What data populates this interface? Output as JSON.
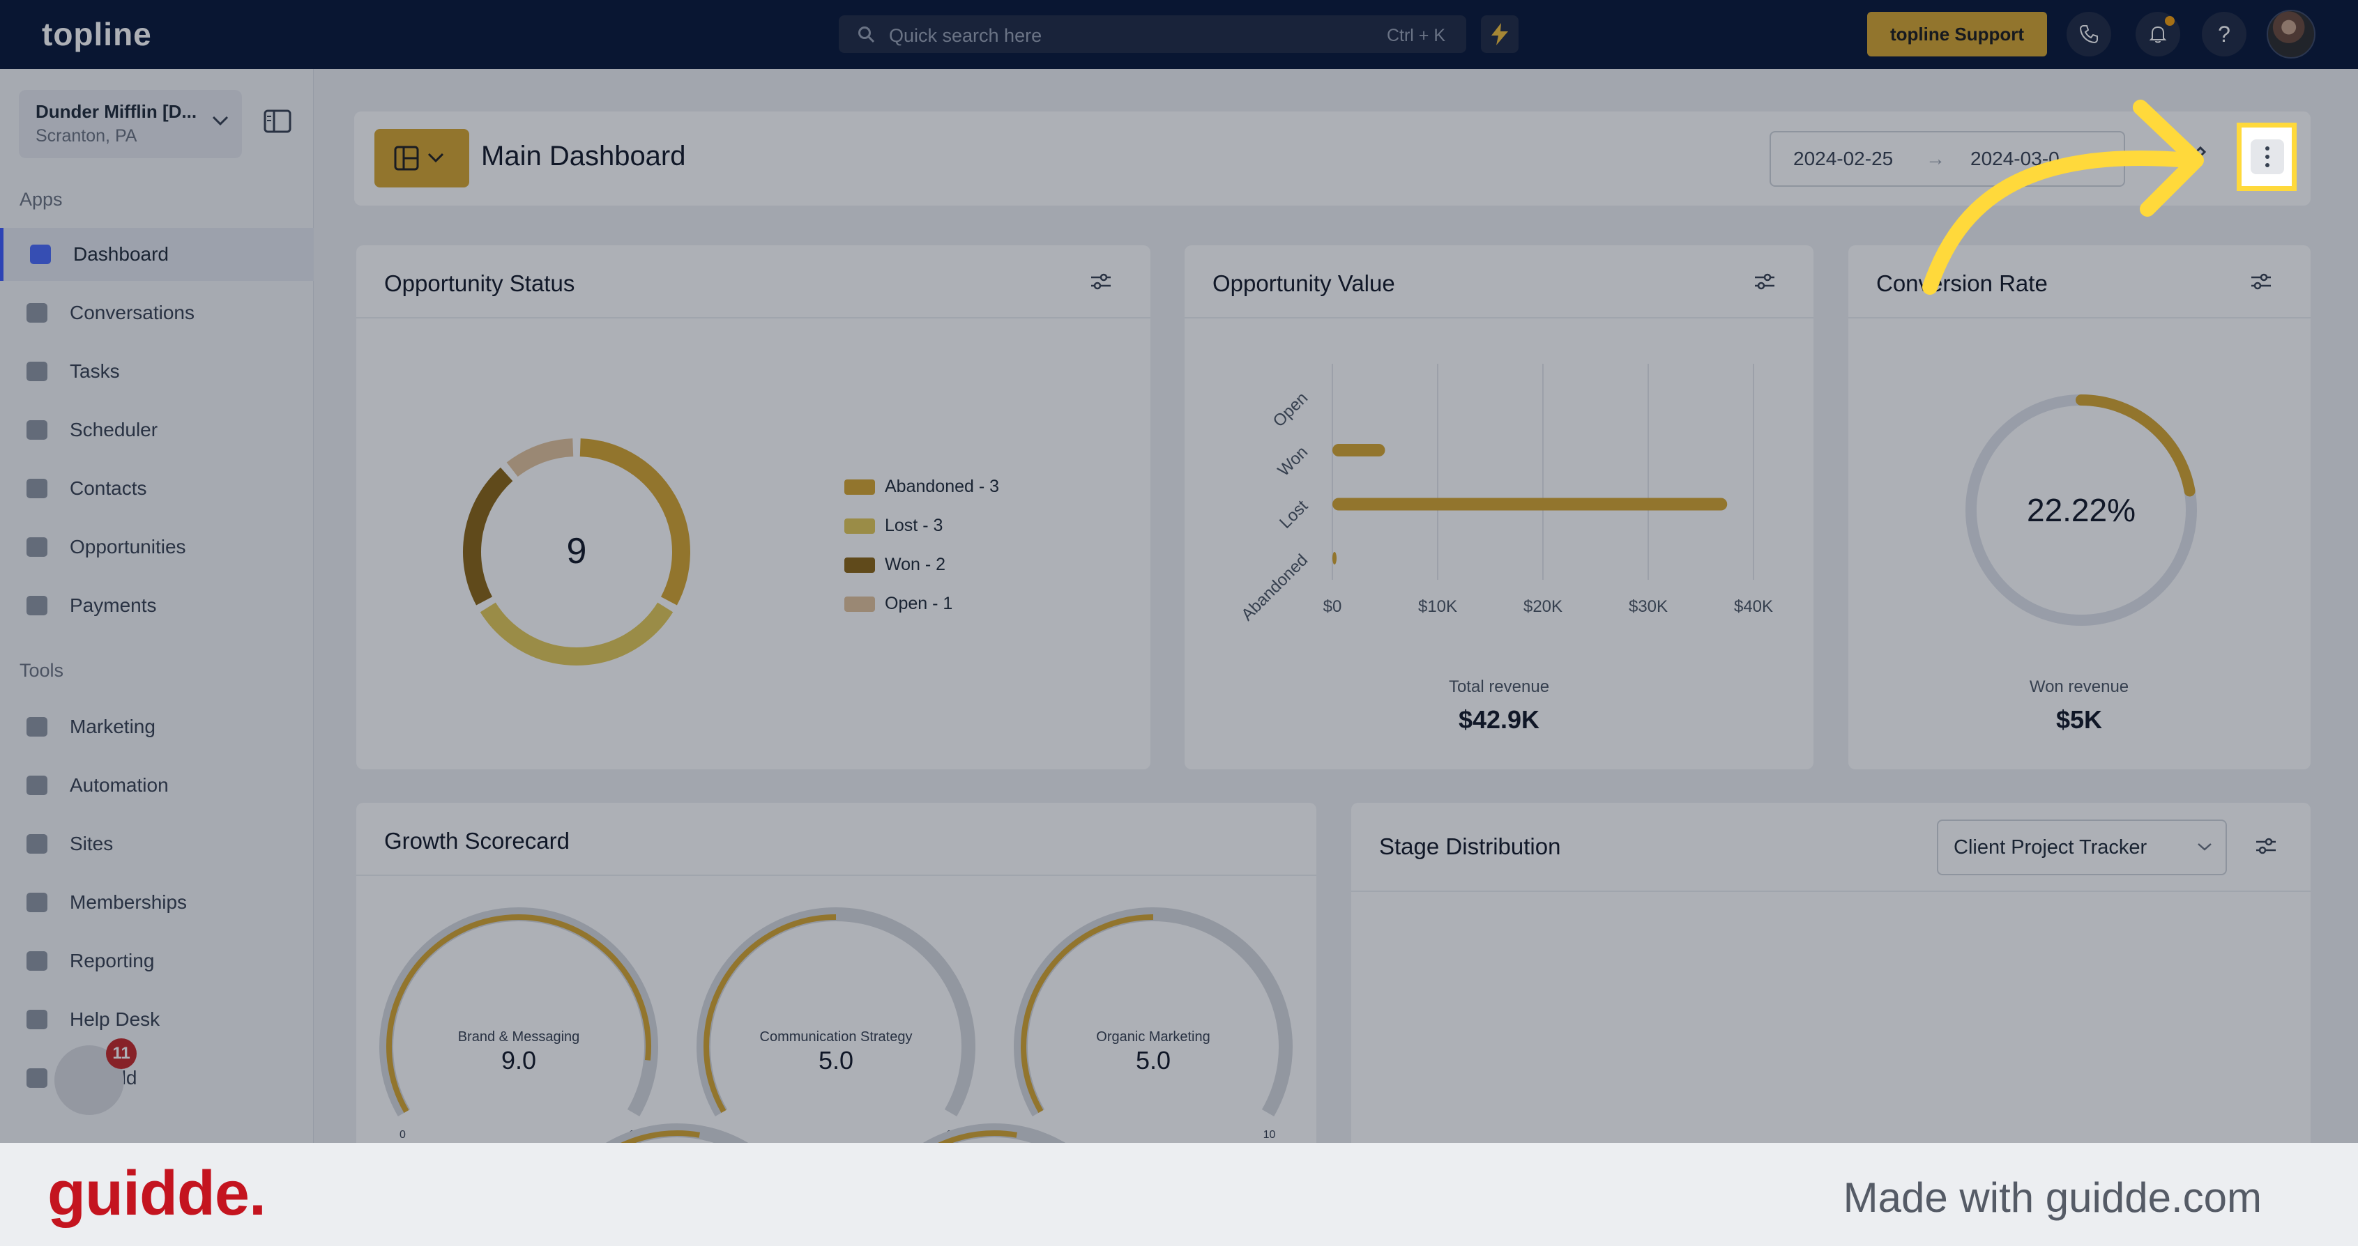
{
  "app": {
    "logo": "topline"
  },
  "topbar": {
    "search_placeholder": "Quick search here",
    "search_shortcut": "Ctrl + K",
    "support_label": "topline Support",
    "help_label": "?",
    "notification_dot_color": "#f59e0b"
  },
  "account": {
    "name": "Dunder Mifflin [D...",
    "location": "Scranton, PA"
  },
  "sidebar": {
    "apps_label": "Apps",
    "tools_label": "Tools",
    "apps": [
      {
        "label": "Dashboard",
        "icon": "dashboard-icon",
        "active": true
      },
      {
        "label": "Conversations",
        "icon": "chat-icon"
      },
      {
        "label": "Tasks",
        "icon": "tasks-icon"
      },
      {
        "label": "Scheduler",
        "icon": "calendar-icon"
      },
      {
        "label": "Contacts",
        "icon": "person-icon"
      },
      {
        "label": "Opportunities",
        "icon": "target-icon"
      },
      {
        "label": "Payments",
        "icon": "card-icon"
      }
    ],
    "tools": [
      {
        "label": "Marketing",
        "icon": "megaphone-icon"
      },
      {
        "label": "Automation",
        "icon": "gears-icon"
      },
      {
        "label": "Sites",
        "icon": "globe-icon"
      },
      {
        "label": "Memberships",
        "icon": "users-icon"
      },
      {
        "label": "Reporting",
        "icon": "pie-icon"
      },
      {
        "label": "Help Desk",
        "icon": "help-icon"
      },
      {
        "label": "Mailfold",
        "icon": "mail-icon"
      }
    ],
    "badge_count": "11"
  },
  "header": {
    "title": "Main Dashboard",
    "date_start": "2024-02-25",
    "date_arrow": "→",
    "date_end": "2024-03-0..."
  },
  "widgets": {
    "opportunity_status": {
      "title": "Opportunity Status",
      "total": "9",
      "legend": [
        {
          "label": "Abandoned - 3",
          "color": "#d6a630"
        },
        {
          "label": "Lost - 3",
          "color": "#e3c857"
        },
        {
          "label": "Won - 2",
          "color": "#8a6414"
        },
        {
          "label": "Open - 1",
          "color": "#e2c39c"
        }
      ]
    },
    "opportunity_value": {
      "title": "Opportunity Value",
      "total_label": "Total revenue",
      "total_value": "$42.9K"
    },
    "conversion_rate": {
      "title": "Conversion Rate",
      "rate_label": "22.22%",
      "won_label": "Won revenue",
      "won_value": "$5K"
    },
    "growth_scorecard": {
      "title": "Growth Scorecard",
      "gauges": [
        {
          "label": "Brand & Messaging",
          "value": "9.0",
          "min": "0",
          "max": "10"
        },
        {
          "label": "Communication Strategy",
          "value": "5.0",
          "min": "0",
          "max": "10"
        },
        {
          "label": "Organic Marketing",
          "value": "5.0",
          "min": "0",
          "max": "10"
        }
      ]
    },
    "stage_distribution": {
      "title": "Stage Distribution",
      "pipeline": "Client Project Tracker"
    }
  },
  "chart_data": [
    {
      "type": "pie",
      "categories": [
        "Abandoned",
        "Lost",
        "Won",
        "Open"
      ],
      "values": [
        3,
        3,
        2,
        1
      ],
      "colors": [
        "#d6a630",
        "#e3c857",
        "#8a6414",
        "#e2c39c"
      ],
      "title": "Opportunity Status"
    },
    {
      "type": "bar",
      "orientation": "horizontal",
      "categories": [
        "Open",
        "Won",
        "Lost",
        "Abandoned"
      ],
      "values": [
        0,
        5000,
        37500,
        400
      ],
      "x_ticks": [
        "$0",
        "$10K",
        "$20K",
        "$30K",
        "$40K"
      ],
      "xlim": [
        0,
        40000
      ],
      "grid": true,
      "title": "Opportunity Value"
    },
    {
      "type": "pie",
      "categories": [
        "Won"
      ],
      "values": [
        22.22
      ],
      "title": "Conversion Rate"
    },
    {
      "type": "gauge",
      "categories": [
        "Brand & Messaging",
        "Communication Strategy",
        "Organic Marketing"
      ],
      "values": [
        9,
        5,
        5
      ],
      "ylim": [
        0,
        10
      ],
      "title": "Growth Scorecard"
    }
  ],
  "footer": {
    "brand": "guidde.",
    "made_with": "Made with guidde.com"
  }
}
